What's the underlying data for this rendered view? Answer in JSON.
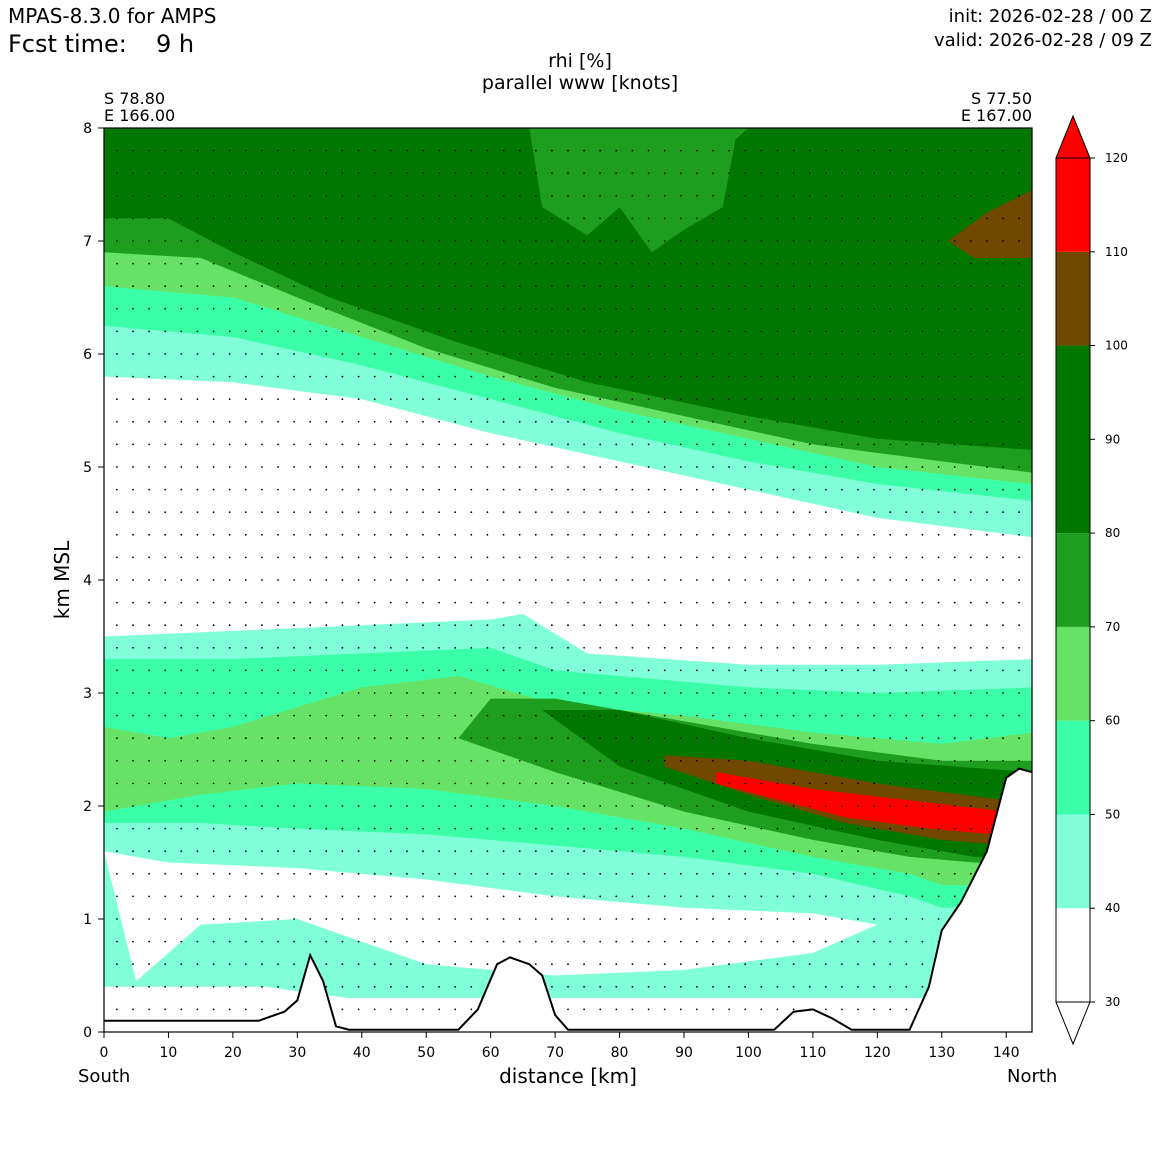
{
  "header": {
    "model": "MPAS-8.3.0 for AMPS",
    "fcst_label": "Fcst time:",
    "fcst_value": "9 h",
    "init": "init: 2026-02-28 / 00 Z",
    "valid": "valid: 2026-02-28 / 09 Z"
  },
  "chart_data": {
    "type": "cross-section contour",
    "title_line1": "rhi [%]",
    "title_line2": "parallel www [knots]",
    "xlabel": "distance [km]",
    "ylabel": "km MSL",
    "xlim": [
      0,
      144
    ],
    "ylim": [
      0,
      8
    ],
    "x_ticks": [
      "0",
      "10",
      "20",
      "30",
      "40",
      "50",
      "60",
      "70",
      "80",
      "90",
      "100",
      "110",
      "120",
      "130",
      "140"
    ],
    "y_ticks": [
      "0",
      "1",
      "2",
      "3",
      "4",
      "5",
      "6",
      "7",
      "8"
    ],
    "left_endpoint": {
      "lat": "S 78.80",
      "lon": "E 166.00",
      "dir": "South"
    },
    "right_endpoint": {
      "lat": "S 77.50",
      "lon": "E 167.00",
      "dir": "North"
    },
    "colorbar": {
      "levels": [
        "30",
        "40",
        "50",
        "60",
        "70",
        "80",
        "90",
        "100",
        "110",
        "120"
      ],
      "bins": [
        {
          "range": [
            30,
            40
          ],
          "color": "#ffffff"
        },
        {
          "range": [
            40,
            50
          ],
          "color": "#80ffd9"
        },
        {
          "range": [
            50,
            60
          ],
          "color": "#3bffa8"
        },
        {
          "range": [
            60,
            70
          ],
          "color": "#66e366"
        },
        {
          "range": [
            70,
            80
          ],
          "color": "#1e9e1e"
        },
        {
          "range": [
            80,
            100
          ],
          "color": "#007800"
        },
        {
          "range": [
            100,
            110
          ],
          "color": "#704800"
        },
        {
          "range": [
            110,
            120
          ],
          "color": "#ff0000"
        }
      ],
      "extend_low_color": "#ffffff",
      "extend_high_color": "#ff0000"
    },
    "terrain_km": [
      [
        0,
        0.1
      ],
      [
        10,
        0.1
      ],
      [
        20,
        0.1
      ],
      [
        24,
        0.1
      ],
      [
        28,
        0.18
      ],
      [
        30,
        0.28
      ],
      [
        32,
        0.68
      ],
      [
        34,
        0.45
      ],
      [
        36,
        0.05
      ],
      [
        38,
        0.02
      ],
      [
        55,
        0.02
      ],
      [
        58,
        0.2
      ],
      [
        61,
        0.6
      ],
      [
        63,
        0.66
      ],
      [
        66,
        0.6
      ],
      [
        68,
        0.5
      ],
      [
        70,
        0.15
      ],
      [
        72,
        0.02
      ],
      [
        104,
        0.02
      ],
      [
        107,
        0.18
      ],
      [
        110,
        0.2
      ],
      [
        113,
        0.12
      ],
      [
        116,
        0.02
      ],
      [
        125,
        0.02
      ],
      [
        128,
        0.4
      ],
      [
        130,
        0.9
      ],
      [
        133,
        1.15
      ],
      [
        137,
        1.6
      ],
      [
        140,
        2.25
      ],
      [
        142,
        2.33
      ],
      [
        144,
        2.3
      ]
    ],
    "regions": [
      {
        "name": "upper-moist",
        "color": "#80ffd9",
        "top": [
          [
            0,
            8
          ],
          [
            144,
            8
          ]
        ],
        "bottom": [
          [
            0,
            5.8
          ],
          [
            20,
            5.75
          ],
          [
            40,
            5.6
          ],
          [
            60,
            5.3
          ],
          [
            80,
            5.05
          ],
          [
            100,
            4.8
          ],
          [
            120,
            4.55
          ],
          [
            144,
            4.38
          ]
        ]
      },
      {
        "name": "upper-60",
        "color": "#3bffa8",
        "top": [
          [
            0,
            8
          ],
          [
            144,
            8
          ]
        ],
        "bottom": [
          [
            0,
            6.25
          ],
          [
            20,
            6.15
          ],
          [
            40,
            5.9
          ],
          [
            60,
            5.6
          ],
          [
            80,
            5.3
          ],
          [
            100,
            5.05
          ],
          [
            120,
            4.85
          ],
          [
            144,
            4.7
          ]
        ]
      },
      {
        "name": "upper-70",
        "color": "#66e366",
        "top": [
          [
            0,
            8
          ],
          [
            144,
            8
          ]
        ],
        "bottom": [
          [
            0,
            6.6
          ],
          [
            20,
            6.5
          ],
          [
            40,
            6.15
          ],
          [
            60,
            5.8
          ],
          [
            80,
            5.5
          ],
          [
            100,
            5.25
          ],
          [
            120,
            5.0
          ],
          [
            144,
            4.85
          ]
        ]
      },
      {
        "name": "upper-80",
        "color": "#1e9e1e",
        "top": [
          [
            0,
            8
          ],
          [
            144,
            8
          ]
        ],
        "bottom": [
          [
            0,
            6.9
          ],
          [
            15,
            6.85
          ],
          [
            30,
            6.5
          ],
          [
            50,
            6.05
          ],
          [
            70,
            5.7
          ],
          [
            90,
            5.45
          ],
          [
            110,
            5.2
          ],
          [
            130,
            5.05
          ],
          [
            144,
            4.95
          ]
        ]
      },
      {
        "name": "upper-90",
        "color": "#007800",
        "top": [
          [
            0,
            8
          ],
          [
            144,
            8
          ]
        ],
        "bottom": [
          [
            0,
            7.2
          ],
          [
            10,
            7.2
          ],
          [
            20,
            6.9
          ],
          [
            35,
            6.5
          ],
          [
            55,
            6.1
          ],
          [
            75,
            5.75
          ],
          [
            100,
            5.45
          ],
          [
            120,
            5.25
          ],
          [
            144,
            5.15
          ]
        ]
      },
      {
        "name": "upper-gap",
        "color": "#1e9e1e",
        "top": [
          [
            66,
            8
          ],
          [
            100,
            8
          ]
        ],
        "bottom": [
          [
            66,
            8
          ],
          [
            68,
            7.3
          ],
          [
            75,
            7.05
          ],
          [
            80,
            7.3
          ],
          [
            85,
            6.9
          ],
          [
            90,
            7.1
          ],
          [
            96,
            7.3
          ],
          [
            98,
            7.9
          ],
          [
            100,
            8
          ]
        ]
      },
      {
        "name": "upper-100",
        "color": "#704800",
        "top": [
          [
            131,
            7.0
          ],
          [
            137,
            7.25
          ],
          [
            144,
            7.45
          ]
        ],
        "bottom": [
          [
            131,
            7.0
          ],
          [
            135,
            6.85
          ],
          [
            144,
            6.85
          ]
        ]
      },
      {
        "name": "lower-40",
        "color": "#80ffd9",
        "top": [
          [
            0,
            3.5
          ],
          [
            20,
            3.55
          ],
          [
            40,
            3.6
          ],
          [
            60,
            3.65
          ],
          [
            65,
            3.7
          ],
          [
            75,
            3.35
          ],
          [
            100,
            3.25
          ],
          [
            120,
            3.25
          ],
          [
            144,
            3.3
          ]
        ],
        "bottom": [
          [
            0,
            0.4
          ],
          [
            25,
            0.4
          ],
          [
            38,
            0.3
          ],
          [
            70,
            0.3
          ],
          [
            110,
            0.3
          ],
          [
            144,
            0.3
          ]
        ]
      },
      {
        "name": "lower-50",
        "color": "#3bffa8",
        "top": [
          [
            0,
            3.3
          ],
          [
            20,
            3.3
          ],
          [
            40,
            3.35
          ],
          [
            60,
            3.4
          ],
          [
            70,
            3.2
          ],
          [
            100,
            3.05
          ],
          [
            120,
            3.0
          ],
          [
            144,
            3.05
          ]
        ],
        "bottom": [
          [
            0,
            1.85
          ],
          [
            15,
            1.85
          ],
          [
            30,
            1.8
          ],
          [
            50,
            1.75
          ],
          [
            70,
            1.65
          ],
          [
            90,
            1.55
          ],
          [
            110,
            1.4
          ],
          [
            125,
            1.2
          ],
          [
            130,
            1.1
          ],
          [
            144,
            1.1
          ]
        ]
      },
      {
        "name": "lower-60",
        "color": "#66e366",
        "top": [
          [
            0,
            2.7
          ],
          [
            10,
            2.6
          ],
          [
            20,
            2.7
          ],
          [
            40,
            3.05
          ],
          [
            55,
            3.15
          ],
          [
            70,
            2.9
          ],
          [
            90,
            2.8
          ],
          [
            110,
            2.65
          ],
          [
            130,
            2.55
          ],
          [
            144,
            2.65
          ]
        ],
        "bottom": [
          [
            0,
            1.95
          ],
          [
            15,
            2.1
          ],
          [
            30,
            2.2
          ],
          [
            50,
            2.15
          ],
          [
            70,
            2.0
          ],
          [
            90,
            1.8
          ],
          [
            110,
            1.55
          ],
          [
            125,
            1.4
          ],
          [
            130,
            1.3
          ],
          [
            144,
            1.3
          ]
        ]
      },
      {
        "name": "lower-70",
        "color": "#1e9e1e",
        "top": [
          [
            55,
            2.6
          ],
          [
            60,
            2.95
          ],
          [
            70,
            2.95
          ],
          [
            90,
            2.75
          ],
          [
            110,
            2.55
          ],
          [
            130,
            2.4
          ],
          [
            144,
            2.4
          ]
        ],
        "bottom": [
          [
            55,
            2.6
          ],
          [
            70,
            2.3
          ],
          [
            90,
            1.95
          ],
          [
            110,
            1.7
          ],
          [
            125,
            1.55
          ],
          [
            135,
            1.5
          ],
          [
            144,
            1.5
          ]
        ]
      },
      {
        "name": "lower-80",
        "color": "#007800",
        "top": [
          [
            68,
            2.85
          ],
          [
            80,
            2.85
          ],
          [
            100,
            2.6
          ],
          [
            120,
            2.4
          ],
          [
            144,
            2.3
          ]
        ],
        "bottom": [
          [
            68,
            2.85
          ],
          [
            80,
            2.35
          ],
          [
            100,
            1.95
          ],
          [
            120,
            1.7
          ],
          [
            135,
            1.55
          ],
          [
            144,
            1.55
          ]
        ]
      },
      {
        "name": "lower-100",
        "color": "#704800",
        "top": [
          [
            87,
            2.45
          ],
          [
            100,
            2.4
          ],
          [
            120,
            2.2
          ],
          [
            140,
            2.05
          ]
        ],
        "bottom": [
          [
            87,
            2.35
          ],
          [
            100,
            2.1
          ],
          [
            115,
            1.85
          ],
          [
            130,
            1.7
          ],
          [
            140,
            1.65
          ]
        ]
      },
      {
        "name": "lower-110",
        "color": "#ff0000",
        "top": [
          [
            95,
            2.3
          ],
          [
            110,
            2.15
          ],
          [
            125,
            2.05
          ],
          [
            140,
            1.95
          ]
        ],
        "bottom": [
          [
            95,
            2.2
          ],
          [
            105,
            2.05
          ],
          [
            115,
            1.9
          ],
          [
            128,
            1.8
          ],
          [
            138,
            1.75
          ]
        ]
      }
    ],
    "white_pockets": [
      {
        "top": [
          [
            0,
            1.6
          ],
          [
            10,
            1.5
          ],
          [
            30,
            1.45
          ],
          [
            50,
            1.35
          ],
          [
            70,
            1.2
          ],
          [
            90,
            1.1
          ],
          [
            110,
            1.05
          ],
          [
            120,
            0.95
          ]
        ],
        "bottom": [
          [
            5,
            0.45
          ],
          [
            15,
            0.95
          ],
          [
            30,
            1.0
          ],
          [
            50,
            0.6
          ],
          [
            70,
            0.5
          ],
          [
            90,
            0.55
          ],
          [
            110,
            0.7
          ],
          [
            120,
            0.95
          ]
        ]
      }
    ]
  }
}
